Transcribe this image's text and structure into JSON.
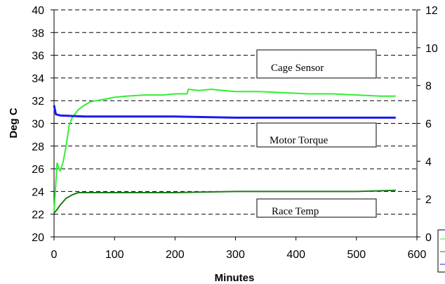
{
  "chart_data": {
    "type": "line",
    "xlabel": "Minutes",
    "ylabel": "Deg C",
    "xlim": [
      0,
      600
    ],
    "ylim": [
      20,
      40
    ],
    "y2lim": [
      0,
      12
    ],
    "x_ticks": [
      "0",
      "100",
      "200",
      "300",
      "400",
      "500",
      "600"
    ],
    "y_ticks": [
      "20",
      "22",
      "24",
      "26",
      "28",
      "30",
      "32",
      "34",
      "36",
      "38",
      "40"
    ],
    "y2_ticks": [
      "0",
      "2",
      "4",
      "6",
      "8",
      "10",
      "12"
    ],
    "grid": "horizontal dashed",
    "series": [
      {
        "name": "Cage Sensor",
        "color": "#33ee33",
        "axis": "left",
        "x": [
          0,
          5,
          10,
          15,
          20,
          25,
          30,
          40,
          50,
          60,
          80,
          100,
          120,
          150,
          180,
          200,
          220,
          222,
          240,
          260,
          280,
          300,
          340,
          380,
          420,
          460,
          500,
          540,
          565
        ],
        "y": [
          22.2,
          26.5,
          25.8,
          26.6,
          28.0,
          29.8,
          30.5,
          31.2,
          31.6,
          31.9,
          32.1,
          32.3,
          32.4,
          32.5,
          32.5,
          32.6,
          32.6,
          33.0,
          32.9,
          33.0,
          32.9,
          32.8,
          32.8,
          32.7,
          32.6,
          32.6,
          32.5,
          32.4,
          32.4
        ],
        "label": "Cage Sensor"
      },
      {
        "name": "Motor Torque",
        "color": "#1a1aee",
        "axis": "left",
        "x": [
          0,
          3,
          10,
          50,
          100,
          200,
          300,
          400,
          500,
          565
        ],
        "y": [
          31.6,
          30.8,
          30.7,
          30.6,
          30.6,
          30.6,
          30.5,
          30.5,
          30.5,
          30.5
        ],
        "label": "Motor Torque"
      },
      {
        "name": "Race Temp",
        "color": "#1e7b1e",
        "axis": "left",
        "x": [
          0,
          5,
          10,
          15,
          20,
          30,
          40,
          60,
          100,
          200,
          300,
          400,
          500,
          565
        ],
        "y": [
          22.1,
          22.4,
          22.8,
          23.1,
          23.4,
          23.7,
          23.9,
          23.9,
          23.9,
          23.9,
          24.0,
          24.0,
          24.0,
          24.1
        ],
        "label": "Race Temp"
      }
    ],
    "legend_entries": [
      "",
      "",
      ""
    ]
  }
}
